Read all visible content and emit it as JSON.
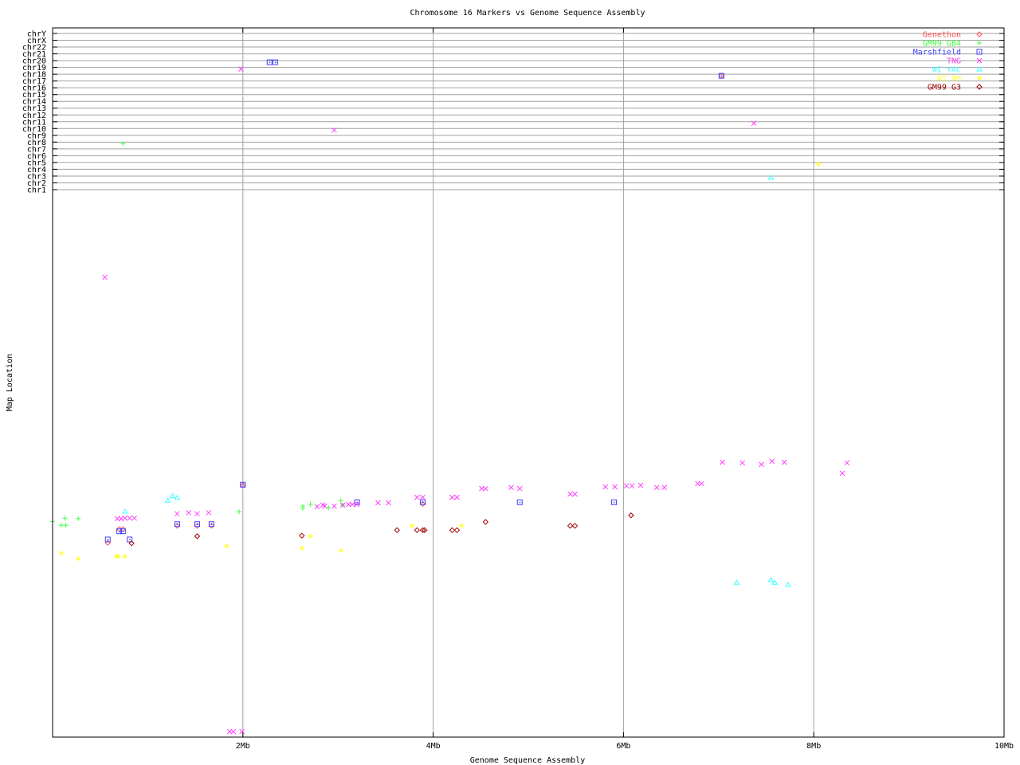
{
  "chart_data": {
    "type": "scatter",
    "title": "Chromosome 16 Markers vs Genome Sequence Assembly",
    "xlabel": "Genome Sequence Assembly",
    "ylabel": "Map Location",
    "xlim": [
      0,
      10
    ],
    "x_unit": "Mb",
    "x_ticks": [
      "2Mb",
      "4Mb",
      "6Mb",
      "8Mb",
      "10Mb"
    ],
    "x_tick_values": [
      2,
      4,
      6,
      8,
      10
    ],
    "chromosome_ticks": [
      "chrY",
      "chrX",
      "chr22",
      "chr21",
      "chr20",
      "chr19",
      "chr18",
      "chr17",
      "chr16",
      "chr15",
      "chr14",
      "chr13",
      "chr12",
      "chr11",
      "chr10",
      "chr9",
      "chr8",
      "chr7",
      "chr6",
      "chr5",
      "chr4",
      "chr3",
      "chr2",
      "chr1"
    ],
    "map_location_range": [
      0,
      100
    ],
    "grid": true,
    "legend_position": "top-right",
    "series": [
      {
        "name": "Genethon",
        "color": "#ff5050",
        "symbol": "diamond",
        "points": [
          {
            "x": 0.58,
            "y": 35.5
          },
          {
            "x": 2.0,
            "y": 46.0
          },
          {
            "x": 1.31,
            "y": 38.6
          },
          {
            "x": 1.52,
            "y": 38.6
          },
          {
            "x": 1.67,
            "y": 38.6
          },
          {
            "x": 0.7,
            "y": 38.0
          },
          {
            "x": 0.74,
            "y": 38.0
          },
          {
            "x": 3.89,
            "y": 42.6
          },
          {
            "x": 7.03,
            "chr": "chr18"
          }
        ]
      },
      {
        "name": "GM99 GB4",
        "color": "#40ff40",
        "symbol": "plus",
        "points": [
          {
            "x": 0.0,
            "y": 39.4
          },
          {
            "x": 0.13,
            "y": 40.0
          },
          {
            "x": 0.27,
            "y": 39.9
          },
          {
            "x": 0.09,
            "y": 38.7
          },
          {
            "x": 0.14,
            "y": 38.7
          },
          {
            "x": 1.96,
            "y": 41.2
          },
          {
            "x": 2.63,
            "y": 42.2
          },
          {
            "x": 2.63,
            "y": 41.8
          },
          {
            "x": 2.71,
            "y": 42.5
          },
          {
            "x": 2.9,
            "y": 41.9
          },
          {
            "x": 3.03,
            "y": 43.2
          },
          {
            "x": 3.05,
            "y": 42.4
          },
          {
            "x": 0.74,
            "chr": "chr8"
          }
        ]
      },
      {
        "name": "Marshfield",
        "color": "#4040ff",
        "symbol": "box",
        "points": [
          {
            "x": 0.58,
            "y": 36.1
          },
          {
            "x": 0.7,
            "y": 37.6
          },
          {
            "x": 0.74,
            "y": 37.6
          },
          {
            "x": 0.81,
            "y": 36.1
          },
          {
            "x": 1.31,
            "y": 38.9
          },
          {
            "x": 1.52,
            "y": 38.9
          },
          {
            "x": 1.67,
            "y": 38.9
          },
          {
            "x": 2.0,
            "y": 46.1
          },
          {
            "x": 3.2,
            "y": 42.9
          },
          {
            "x": 3.89,
            "y": 42.9
          },
          {
            "x": 4.91,
            "y": 42.9
          },
          {
            "x": 5.9,
            "y": 42.9
          },
          {
            "x": 2.28,
            "chr": "chr20"
          },
          {
            "x": 2.34,
            "chr": "chr20"
          },
          {
            "x": 7.03,
            "chr": "chr18"
          }
        ]
      },
      {
        "name": "TNG",
        "color": "#ff40ff",
        "symbol": "cross",
        "points": [
          {
            "x": 0.55,
            "y": 84.0
          },
          {
            "x": 0.68,
            "y": 39.9
          },
          {
            "x": 0.72,
            "y": 39.9
          },
          {
            "x": 0.76,
            "y": 40.0
          },
          {
            "x": 0.81,
            "y": 40.0
          },
          {
            "x": 0.86,
            "y": 40.0
          },
          {
            "x": 1.31,
            "y": 40.8
          },
          {
            "x": 1.43,
            "y": 41.0
          },
          {
            "x": 1.52,
            "y": 40.8
          },
          {
            "x": 1.64,
            "y": 41.0
          },
          {
            "x": 2.78,
            "y": 42.1
          },
          {
            "x": 2.84,
            "y": 42.4
          },
          {
            "x": 2.86,
            "y": 42.2
          },
          {
            "x": 2.96,
            "y": 42.2
          },
          {
            "x": 3.05,
            "y": 42.4
          },
          {
            "x": 3.11,
            "y": 42.5
          },
          {
            "x": 3.15,
            "y": 42.5
          },
          {
            "x": 3.2,
            "y": 42.5
          },
          {
            "x": 3.42,
            "y": 42.8
          },
          {
            "x": 3.53,
            "y": 42.8
          },
          {
            "x": 3.83,
            "y": 43.8
          },
          {
            "x": 3.89,
            "y": 43.8
          },
          {
            "x": 4.2,
            "y": 43.8
          },
          {
            "x": 4.25,
            "y": 43.8
          },
          {
            "x": 4.51,
            "y": 45.4
          },
          {
            "x": 4.55,
            "y": 45.4
          },
          {
            "x": 4.82,
            "y": 45.6
          },
          {
            "x": 4.91,
            "y": 45.4
          },
          {
            "x": 5.44,
            "y": 44.4
          },
          {
            "x": 5.49,
            "y": 44.4
          },
          {
            "x": 5.81,
            "y": 45.7
          },
          {
            "x": 5.91,
            "y": 45.7
          },
          {
            "x": 6.03,
            "y": 45.9
          },
          {
            "x": 6.09,
            "y": 45.9
          },
          {
            "x": 6.18,
            "y": 46.0
          },
          {
            "x": 6.35,
            "y": 45.6
          },
          {
            "x": 6.43,
            "y": 45.6
          },
          {
            "x": 6.78,
            "y": 46.3
          },
          {
            "x": 6.82,
            "y": 46.3
          },
          {
            "x": 7.04,
            "y": 50.2
          },
          {
            "x": 7.25,
            "y": 50.1
          },
          {
            "x": 7.45,
            "y": 49.8
          },
          {
            "x": 7.56,
            "y": 50.4
          },
          {
            "x": 7.69,
            "y": 50.2
          },
          {
            "x": 8.3,
            "y": 48.2
          },
          {
            "x": 8.35,
            "y": 50.1
          },
          {
            "x": 1.86,
            "y": 1.0
          },
          {
            "x": 1.9,
            "y": 1.0
          },
          {
            "x": 1.99,
            "y": 1.0
          },
          {
            "x": 1.98,
            "chr": "chr19"
          },
          {
            "x": 2.96,
            "chr": "chr10"
          },
          {
            "x": 7.37,
            "chr": "chr11"
          }
        ]
      },
      {
        "name": "WI YAC",
        "color": "#40ffff",
        "symbol": "triangle",
        "points": [
          {
            "x": 0.76,
            "y": 41.2
          },
          {
            "x": 1.21,
            "y": 43.2
          },
          {
            "x": 1.26,
            "y": 44.0
          },
          {
            "x": 1.31,
            "y": 43.7
          },
          {
            "x": 7.19,
            "y": 28.2
          },
          {
            "x": 7.55,
            "y": 28.7
          },
          {
            "x": 7.59,
            "y": 28.2
          },
          {
            "x": 7.73,
            "y": 27.8
          },
          {
            "x": 7.55,
            "chr": "chr3"
          }
        ]
      },
      {
        "name": "WI RH",
        "color": "#ffff40",
        "symbol": "star",
        "points": [
          {
            "x": 0.09,
            "y": 33.6
          },
          {
            "x": 0.27,
            "y": 32.6
          },
          {
            "x": 0.67,
            "y": 33.0
          },
          {
            "x": 0.69,
            "y": 33.0
          },
          {
            "x": 0.76,
            "y": 33.0
          },
          {
            "x": 1.83,
            "y": 34.9
          },
          {
            "x": 2.62,
            "y": 34.5
          },
          {
            "x": 2.71,
            "y": 36.7
          },
          {
            "x": 3.03,
            "y": 34.1
          },
          {
            "x": 3.78,
            "y": 38.6
          },
          {
            "x": 4.3,
            "y": 38.6
          },
          {
            "x": 8.05,
            "chr": "chr5"
          }
        ]
      },
      {
        "name": "GM99 G3",
        "color": "#a00000",
        "symbol": "diamond",
        "points": [
          {
            "x": 0.83,
            "y": 35.4
          },
          {
            "x": 1.52,
            "y": 36.7
          },
          {
            "x": 2.62,
            "y": 36.8
          },
          {
            "x": 3.62,
            "y": 37.8
          },
          {
            "x": 3.83,
            "y": 37.8
          },
          {
            "x": 3.89,
            "y": 37.8
          },
          {
            "x": 3.91,
            "y": 37.8
          },
          {
            "x": 4.2,
            "y": 37.8
          },
          {
            "x": 4.25,
            "y": 37.8
          },
          {
            "x": 4.55,
            "y": 39.3
          },
          {
            "x": 5.44,
            "y": 38.6
          },
          {
            "x": 5.49,
            "y": 38.6
          },
          {
            "x": 6.08,
            "y": 40.5
          }
        ]
      }
    ]
  }
}
